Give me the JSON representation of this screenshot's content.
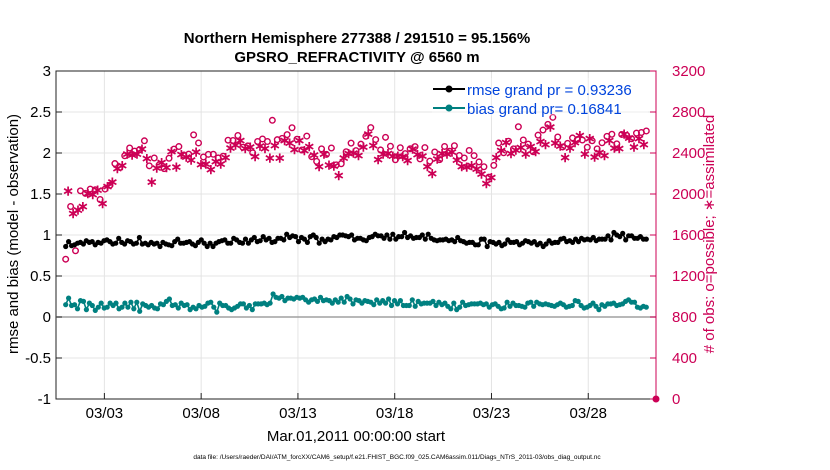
{
  "chart_data": {
    "type": "line",
    "title_line1": "Northern Hemisphere 277388 / 291510 = 95.156%",
    "title_line2": "GPSRO_REFRACTIVITY @ 6560 m",
    "xlabel": "Mar.01,2011 00:00:00 start",
    "ylabel_left": "rmse and bias (model - observation)",
    "ylabel_right": "# of obs: o=possible; ∗=assimilated",
    "footer": "data file: /Users/raeder/DAI/ATM_forcXX/CAM6_setup/f.e21.FHIST_BGC.f09_025.CAM6assim.011/Diags_NTrS_2011-03/obs_diag_output.nc",
    "xlim": [
      0.5,
      31.5
    ],
    "x_ticks": [
      3,
      8,
      13,
      18,
      23,
      28
    ],
    "x_tick_labels": [
      "03/03",
      "03/08",
      "03/13",
      "03/18",
      "03/23",
      "03/28"
    ],
    "ylim_left": [
      -1,
      3
    ],
    "y_ticks_left": [
      "-1",
      "-0.5",
      "0",
      "0.5",
      "1",
      "1.5",
      "2",
      "2.5",
      "3"
    ],
    "ylim_right": [
      0,
      3200
    ],
    "y_ticks_right": [
      "0",
      "400",
      "800",
      "1200",
      "1600",
      "2000",
      "2400",
      "2800",
      "3200"
    ],
    "legend": [
      {
        "name": "rmse grand pr = 0.93236",
        "color": "#000000"
      },
      {
        "name": "bias grand pr= 0.16841",
        "color": "#008080"
      }
    ],
    "colors": {
      "rmse": "#000000",
      "bias": "#008080",
      "obs": "#cc0055",
      "legend_text": "#0044dd",
      "grid": "#e4e4e4"
    },
    "series": [
      {
        "name": "rmse",
        "values": [
          0.86,
          0.92,
          0.87,
          0.88,
          0.9,
          0.91,
          0.89,
          0.93,
          0.91,
          0.92,
          0.88,
          0.91,
          0.9,
          0.93,
          0.94,
          0.92,
          0.89,
          0.9,
          0.96,
          0.91,
          0.89,
          0.93,
          0.92,
          0.89,
          0.9,
          0.97,
          0.89,
          0.9,
          0.88,
          0.91,
          0.89,
          0.9,
          0.86,
          0.91,
          0.89,
          0.88,
          0.87,
          0.92,
          0.95,
          0.9,
          0.9,
          0.91,
          0.92,
          0.89,
          0.87,
          0.91,
          0.94,
          0.9,
          0.86,
          0.9,
          0.86,
          0.9,
          0.92,
          0.93,
          0.94,
          0.9,
          0.9,
          0.96,
          0.94,
          0.91,
          0.9,
          0.95,
          0.9,
          0.94,
          0.97,
          0.92,
          0.93,
          0.98,
          0.94,
          0.96,
          0.91,
          0.92,
          0.96,
          0.96,
          0.94,
          1.01,
          0.97,
          0.99,
          0.98,
          0.92,
          0.97,
          0.95,
          0.91,
          0.98,
          1,
          0.97,
          0.9,
          0.95,
          0.92,
          0.95,
          0.94,
          0.98,
          0.97,
          1,
          1,
          0.99,
          0.98,
          1,
          0.94,
          0.96,
          0.96,
          0.94,
          0.93,
          0.97,
          0.98,
          1.01,
          0.99,
          0.99,
          0.96,
          1,
          0.95,
          1.01,
          0.95,
          0.98,
          0.98,
          1.03,
          0.97,
          0.99,
          0.96,
          0.97,
          0.97,
          1,
          0.95,
          1.01,
          0.96,
          0.94,
          0.93,
          0.94,
          0.94,
          0.95,
          0.93,
          0.94,
          0.92,
          0.97,
          0.93,
          0.92,
          0.9,
          0.91,
          0.91,
          0.88,
          0.88,
          0.95,
          0.95,
          0.86,
          0.92,
          0.91,
          0.89,
          0.91,
          0.87,
          0.89,
          0.94,
          0.91,
          0.91,
          0.92,
          0.88,
          0.9,
          0.93,
          0.92,
          0.9,
          0.92,
          0.88,
          0.9,
          0.86,
          0.89,
          0.93,
          0.9,
          0.91,
          0.91,
          0.95,
          0.96,
          0.92,
          0.93,
          0.91,
          0.95,
          0.92,
          0.96,
          0.94,
          0.95,
          0.94,
          0.97,
          0.93,
          0.95,
          0.95,
          0.95,
          0.99,
          0.94,
          1.03,
          1,
          0.98,
          1.02,
          0.94,
          0.99,
          0.99,
          0.96,
          0.96,
          0.98,
          0.95,
          0.95
        ]
      },
      {
        "name": "bias",
        "values": [
          0.15,
          0.23,
          0.14,
          0.15,
          0.1,
          0.2,
          0.19,
          0.09,
          0.17,
          0.14,
          0.08,
          0.12,
          0.17,
          0.11,
          0.12,
          0.17,
          0.14,
          0.17,
          0.1,
          0.12,
          0.17,
          0.12,
          0.18,
          0.1,
          0.18,
          0.07,
          0.16,
          0.14,
          0.12,
          0.14,
          0.11,
          0.1,
          0.16,
          0.15,
          0.19,
          0.22,
          0.14,
          0.15,
          0.11,
          0.17,
          0.14,
          0.15,
          0.09,
          0.12,
          0.1,
          0.14,
          0.12,
          0.13,
          0.17,
          0.18,
          0.12,
          0.06,
          0.17,
          0.14,
          0.14,
          0.11,
          0.09,
          0.11,
          0.13,
          0.16,
          0.16,
          0.11,
          0.14,
          0.09,
          0.16,
          0.16,
          0.16,
          0.17,
          0.15,
          0.17,
          0.28,
          0.24,
          0.23,
          0.25,
          0.2,
          0.23,
          0.23,
          0.22,
          0.24,
          0.23,
          0.24,
          0.21,
          0.18,
          0.21,
          0.22,
          0.19,
          0.24,
          0.2,
          0.21,
          0.2,
          0.17,
          0.21,
          0.18,
          0.23,
          0.18,
          0.25,
          0.22,
          0.16,
          0.21,
          0.2,
          0.17,
          0.2,
          0.19,
          0.18,
          0.15,
          0.21,
          0.17,
          0.2,
          0.17,
          0.22,
          0.14,
          0.2,
          0.16,
          0.2,
          0.14,
          0.14,
          0.14,
          0.21,
          0.13,
          0.19,
          0.16,
          0.17,
          0.17,
          0.17,
          0.19,
          0.14,
          0.18,
          0.15,
          0.17,
          0.13,
          0.1,
          0.17,
          0.09,
          0.12,
          0.18,
          0.14,
          0.15,
          0.16,
          0.16,
          0.16,
          0.17,
          0.15,
          0.16,
          0.12,
          0.15,
          0.16,
          0.13,
          0.1,
          0.11,
          0.18,
          0.13,
          0.17,
          0.14,
          0.14,
          0.13,
          0.12,
          0.17,
          0.18,
          0.13,
          0.18,
          0.16,
          0.15,
          0.16,
          0.15,
          0.14,
          0.13,
          0.15,
          0.17,
          0.15,
          0.12,
          0.13,
          0.14,
          0.2,
          0.19,
          0.14,
          0.11,
          0.12,
          0.14,
          0.17,
          0.13,
          0.09,
          0.15,
          0.13,
          0.16,
          0.16,
          0.17,
          0.14,
          0.15,
          0.16,
          0.19,
          0.21,
          0.18,
          0.18,
          0.12,
          0.11,
          0.13,
          0.12
        ]
      },
      {
        "name": "obs_possible",
        "values": [
          1364,
          2080,
          1878,
          1870,
          1446,
          1914,
          2031,
          1943,
          2006,
          2075,
          2048,
          2069,
          2041,
          2106,
          1946,
          1972,
          2048,
          2144,
          2085,
          2189,
          2297,
          2326,
          2259,
          2347,
          2373,
          2471,
          2449,
          2457,
          2418,
          2468,
          2433,
          2515,
          2519,
          2418,
          2275,
          2188,
          2351,
          2322,
          2285,
          2380,
          2247,
          2334,
          2349,
          2489,
          2438,
          2334,
          2463,
          2458,
          2380,
          2435,
          2389,
          2402,
          2577,
          2485,
          2498,
          2363,
          2361,
          2365,
          2387,
          2313,
          2388,
          2394,
          2352,
          2370,
          2368,
          2432,
          2525,
          2523,
          2522,
          2556,
          2571,
          2600,
          2456,
          2523,
          2469,
          2535,
          2402,
          2441,
          2512,
          2546,
          2537,
          2521,
          2512,
          2422,
          2719,
          2552,
          2530,
          2431,
          2543,
          2597,
          2579,
          2574,
          2646,
          2512,
          2534,
          2600,
          2429,
          2502,
          2565,
          2539,
          2364,
          2455,
          2318,
          2339,
          2440,
          2464,
          2386,
          2356,
          2449,
          2345,
          2284,
          2252,
          2295,
          2427,
          2412,
          2469,
          2496,
          2477,
          2423,
          2450,
          2486,
          2531,
          2563,
          2661,
          2648,
          2547,
          2531,
          2408,
          2430,
          2461,
          2553,
          2471,
          2466,
          2446,
          2334,
          2445,
          2451,
          2439,
          2394,
          2399,
          2441,
          2515,
          2462,
          2460,
          2343,
          2447,
          2453,
          2338,
          2321,
          2271,
          2410,
          2413,
          2335,
          2470,
          2464,
          2465,
          2417,
          2482,
          2471,
          2404,
          2376,
          2341,
          2351,
          2335,
          2425,
          2350,
          2374,
          2315,
          2313,
          2266,
          2266,
          2168,
          2165,
          2234,
          2279,
          2429,
          2497,
          2498,
          2402,
          2577,
          2515,
          2469,
          2440,
          2508,
          2656,
          2531,
          2527,
          2466,
          2487,
          2539,
          2412,
          2490,
          2574,
          2591,
          2624,
          2559,
          2679,
          2733,
          2748,
          2573,
          2556,
          2547,
          2459,
          2432,
          2494,
          2523,
          2547,
          2582,
          2532,
          2649,
          2527,
          2467,
          2456,
          2617,
          2519,
          2434,
          2440,
          2478,
          2500,
          2450,
          2562,
          2596,
          2583,
          2524,
          2489,
          2519,
          2581,
          2664,
          2572,
          2623,
          2539,
          2536,
          2594,
          2619,
          2600,
          2561,
          2615
        ]
      },
      {
        "name": "obs_assimilated",
        "values": [
          1330,
          2044,
          1830,
          1822,
          1391,
          1858,
          1977,
          1893,
          1956,
          2018,
          1995,
          2010,
          1983,
          2053,
          1896,
          1922,
          1997,
          2087,
          2024,
          2133,
          2238,
          2263,
          2200,
          2292,
          2316,
          2407,
          2388,
          2395,
          2356,
          2405,
          2375,
          2453,
          2458,
          2359,
          2220,
          2134,
          2296,
          2269,
          2225,
          2321,
          2190,
          2275,
          2290,
          2427,
          2376,
          2276,
          2406,
          2398,
          2323,
          2376,
          2331,
          2344,
          2513,
          2424,
          2436,
          2303,
          2301,
          2306,
          2327,
          2256,
          2330,
          2334,
          2291,
          2309,
          2307,
          2372,
          2465,
          2461,
          2457,
          2493,
          2509,
          2537,
          2395,
          2460,
          2407,
          2474,
          2341,
          2382,
          2452,
          2483,
          2477,
          2457,
          2449,
          2364,
          2661,
          2488,
          2468,
          2368,
          2481,
          2537,
          2519,
          2512,
          2584,
          2448,
          2472,
          2538,
          2370,
          2440,
          2500,
          2477,
          2306,
          2396,
          2261,
          2281,
          2379,
          2406,
          2328,
          2297,
          2389,
          2286,
          2228,
          2197,
          2238,
          2367,
          2352,
          2409,
          2435,
          2415,
          2364,
          2390,
          2426,
          2471,
          2502,
          2598,
          2586,
          2487,
          2468,
          2349,
          2368,
          2403,
          2491,
          2410,
          2408,
          2386,
          2276,
          2386,
          2390,
          2379,
          2336,
          2341,
          2380,
          2455,
          2401,
          2401,
          2285,
          2385,
          2392,
          2282,
          2265,
          2215,
          2349,
          2354,
          2277,
          2409,
          2405,
          2406,
          2359,
          2422,
          2410,
          2344,
          2318,
          2284,
          2293,
          2276,
          2366,
          2292,
          2316,
          2258,
          2255,
          2210,
          2210,
          2116,
          2111,
          2178,
          2223,
          2370,
          2437,
          2437,
          2343,
          2515,
          2452,
          2409,
          2380,
          2445,
          2593,
          2470,
          2466,
          2405,
          2427,
          2477,
          2353,
          2428,
          2512,
          2528,
          2561,
          2496,
          2616,
          2669,
          2684,
          2510,
          2495,
          2485,
          2398,
          2371,
          2433,
          2461,
          2485,
          2519,
          2470,
          2587,
          2465,
          2407,
          2396,
          2555,
          2458,
          2374,
          2382,
          2418,
          2438,
          2390,
          2500,
          2535,
          2521,
          2462,
          2428,
          2458,
          2520,
          2601,
          2510,
          2561,
          2477,
          2474,
          2532,
          2557,
          2539,
          2497,
          2554
        ]
      }
    ]
  }
}
